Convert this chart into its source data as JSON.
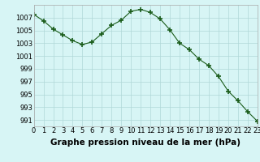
{
  "x": [
    0,
    1,
    2,
    3,
    4,
    5,
    6,
    7,
    8,
    9,
    10,
    11,
    12,
    13,
    14,
    15,
    16,
    17,
    18,
    19,
    20,
    21,
    22,
    23
  ],
  "y": [
    1007.5,
    1006.5,
    1005.2,
    1004.3,
    1003.4,
    1002.8,
    1003.2,
    1004.5,
    1005.8,
    1006.6,
    1008.0,
    1008.3,
    1007.8,
    1006.8,
    1005.1,
    1003.0,
    1002.0,
    1000.5,
    999.5,
    997.8,
    995.5,
    994.0,
    992.3,
    990.8
  ],
  "line_color": "#1a5c1a",
  "marker": "+",
  "marker_size": 4,
  "marker_linewidth": 1.2,
  "bg_color": "#d7f5f5",
  "grid_color": "#b0d8d8",
  "caption": "Graphe pression niveau de la mer (hPa)",
  "ylim_min": 990,
  "ylim_max": 1009,
  "yticks": [
    991,
    993,
    995,
    997,
    999,
    1001,
    1003,
    1005,
    1007
  ],
  "xlim_min": 0,
  "xlim_max": 23,
  "caption_fontsize": 7.5,
  "tick_fontsize": 6
}
